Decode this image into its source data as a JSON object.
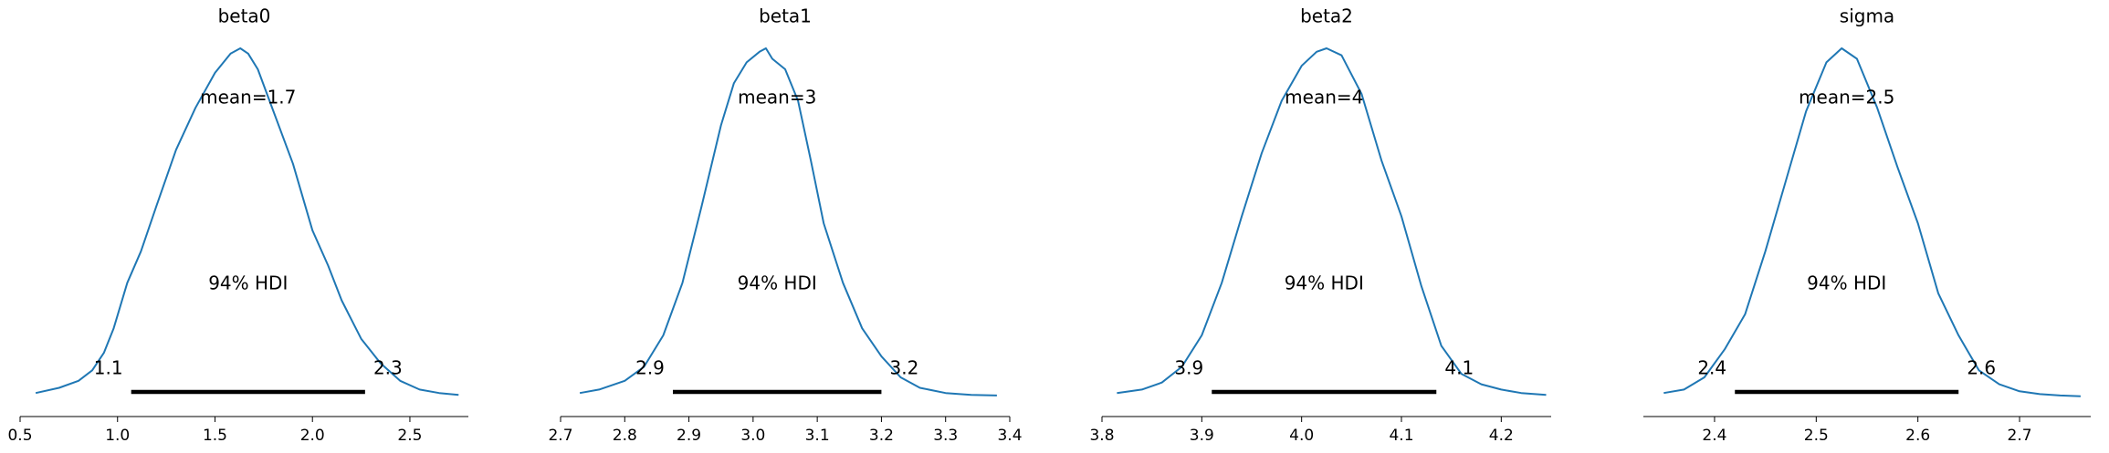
{
  "chart_data": [
    {
      "type": "line",
      "title": "beta0",
      "xlim": [
        0.5,
        2.8
      ],
      "xticks": [
        0.5,
        1.0,
        1.5,
        2.0,
        2.5
      ],
      "xtick_labels": [
        "0.5",
        "1.0",
        "1.5",
        "2.0",
        "2.5"
      ],
      "density_peak": 1.0,
      "mean_label": "mean=1.7",
      "hdi_label": "94% HDI",
      "hdi": [
        1.07,
        2.27
      ],
      "hdi_low_label": "1.1",
      "hdi_high_label": "2.3",
      "x": [
        0.58,
        0.7,
        0.8,
        0.87,
        0.93,
        0.98,
        1.05,
        1.12,
        1.2,
        1.3,
        1.4,
        1.5,
        1.58,
        1.63,
        1.67,
        1.72,
        1.8,
        1.9,
        2.0,
        2.08,
        2.15,
        2.25,
        2.35,
        2.45,
        2.55,
        2.65,
        2.75
      ],
      "y": [
        0.015,
        0.03,
        0.05,
        0.08,
        0.13,
        0.2,
        0.33,
        0.42,
        0.55,
        0.71,
        0.83,
        0.93,
        0.985,
        1.0,
        0.985,
        0.94,
        0.82,
        0.67,
        0.48,
        0.38,
        0.28,
        0.17,
        0.1,
        0.05,
        0.025,
        0.015,
        0.01
      ]
    },
    {
      "type": "line",
      "title": "beta1",
      "xlim": [
        2.7,
        3.4
      ],
      "xticks": [
        2.7,
        2.8,
        2.9,
        3.0,
        3.1,
        3.2,
        3.3,
        3.4
      ],
      "xtick_labels": [
        "2.7",
        "2.8",
        "2.9",
        "3.0",
        "3.1",
        "3.2",
        "3.3",
        "3.4"
      ],
      "density_peak": 1.0,
      "mean_label": "mean=3",
      "hdi_label": "94% HDI",
      "hdi": [
        2.875,
        3.2
      ],
      "hdi_low_label": "2.9",
      "hdi_high_label": "3.2",
      "x": [
        2.73,
        2.76,
        2.8,
        2.83,
        2.86,
        2.89,
        2.92,
        2.95,
        2.97,
        2.99,
        3.01,
        3.02,
        3.03,
        3.05,
        3.07,
        3.09,
        3.11,
        3.14,
        3.17,
        3.2,
        3.23,
        3.26,
        3.3,
        3.34,
        3.38
      ],
      "y": [
        0.015,
        0.025,
        0.05,
        0.09,
        0.18,
        0.33,
        0.55,
        0.78,
        0.9,
        0.96,
        0.99,
        1.0,
        0.97,
        0.94,
        0.85,
        0.68,
        0.5,
        0.33,
        0.2,
        0.12,
        0.06,
        0.03,
        0.015,
        0.01,
        0.008
      ]
    },
    {
      "type": "line",
      "title": "beta2",
      "xlim": [
        3.8,
        4.25
      ],
      "xticks": [
        3.8,
        3.9,
        4.0,
        4.1,
        4.2
      ],
      "xtick_labels": [
        "3.8",
        "3.9",
        "4.0",
        "4.1",
        "4.2"
      ],
      "density_peak": 1.0,
      "mean_label": "mean=4",
      "hdi_label": "94% HDI",
      "hdi": [
        3.91,
        4.135
      ],
      "hdi_low_label": "3.9",
      "hdi_high_label": "4.1",
      "x": [
        3.815,
        3.84,
        3.86,
        3.88,
        3.9,
        3.92,
        3.94,
        3.96,
        3.98,
        4.0,
        4.015,
        4.025,
        4.04,
        4.06,
        4.08,
        4.1,
        4.12,
        4.14,
        4.16,
        4.18,
        4.2,
        4.22,
        4.245
      ],
      "y": [
        0.015,
        0.025,
        0.045,
        0.09,
        0.18,
        0.33,
        0.52,
        0.7,
        0.85,
        0.95,
        0.99,
        1.0,
        0.98,
        0.87,
        0.68,
        0.52,
        0.32,
        0.15,
        0.07,
        0.04,
        0.025,
        0.015,
        0.01
      ]
    },
    {
      "type": "line",
      "title": "sigma",
      "xlim": [
        2.33,
        2.77
      ],
      "xticks": [
        2.4,
        2.5,
        2.6,
        2.7
      ],
      "xtick_labels": [
        "2.4",
        "2.5",
        "2.6",
        "2.7"
      ],
      "density_peak": 1.0,
      "mean_label": "mean=2.5",
      "hdi_label": "94% HDI",
      "hdi": [
        2.42,
        2.64
      ],
      "hdi_low_label": "2.4",
      "hdi_high_label": "2.6",
      "x": [
        2.35,
        2.37,
        2.39,
        2.41,
        2.43,
        2.45,
        2.47,
        2.49,
        2.51,
        2.525,
        2.54,
        2.56,
        2.58,
        2.6,
        2.62,
        2.64,
        2.66,
        2.68,
        2.7,
        2.72,
        2.74,
        2.76
      ],
      "y": [
        0.015,
        0.025,
        0.06,
        0.14,
        0.24,
        0.42,
        0.62,
        0.82,
        0.96,
        1.0,
        0.97,
        0.83,
        0.66,
        0.5,
        0.3,
        0.18,
        0.08,
        0.04,
        0.02,
        0.012,
        0.008,
        0.006
      ]
    }
  ],
  "line_color": "#1f77b4",
  "hdi_color": "#000000"
}
